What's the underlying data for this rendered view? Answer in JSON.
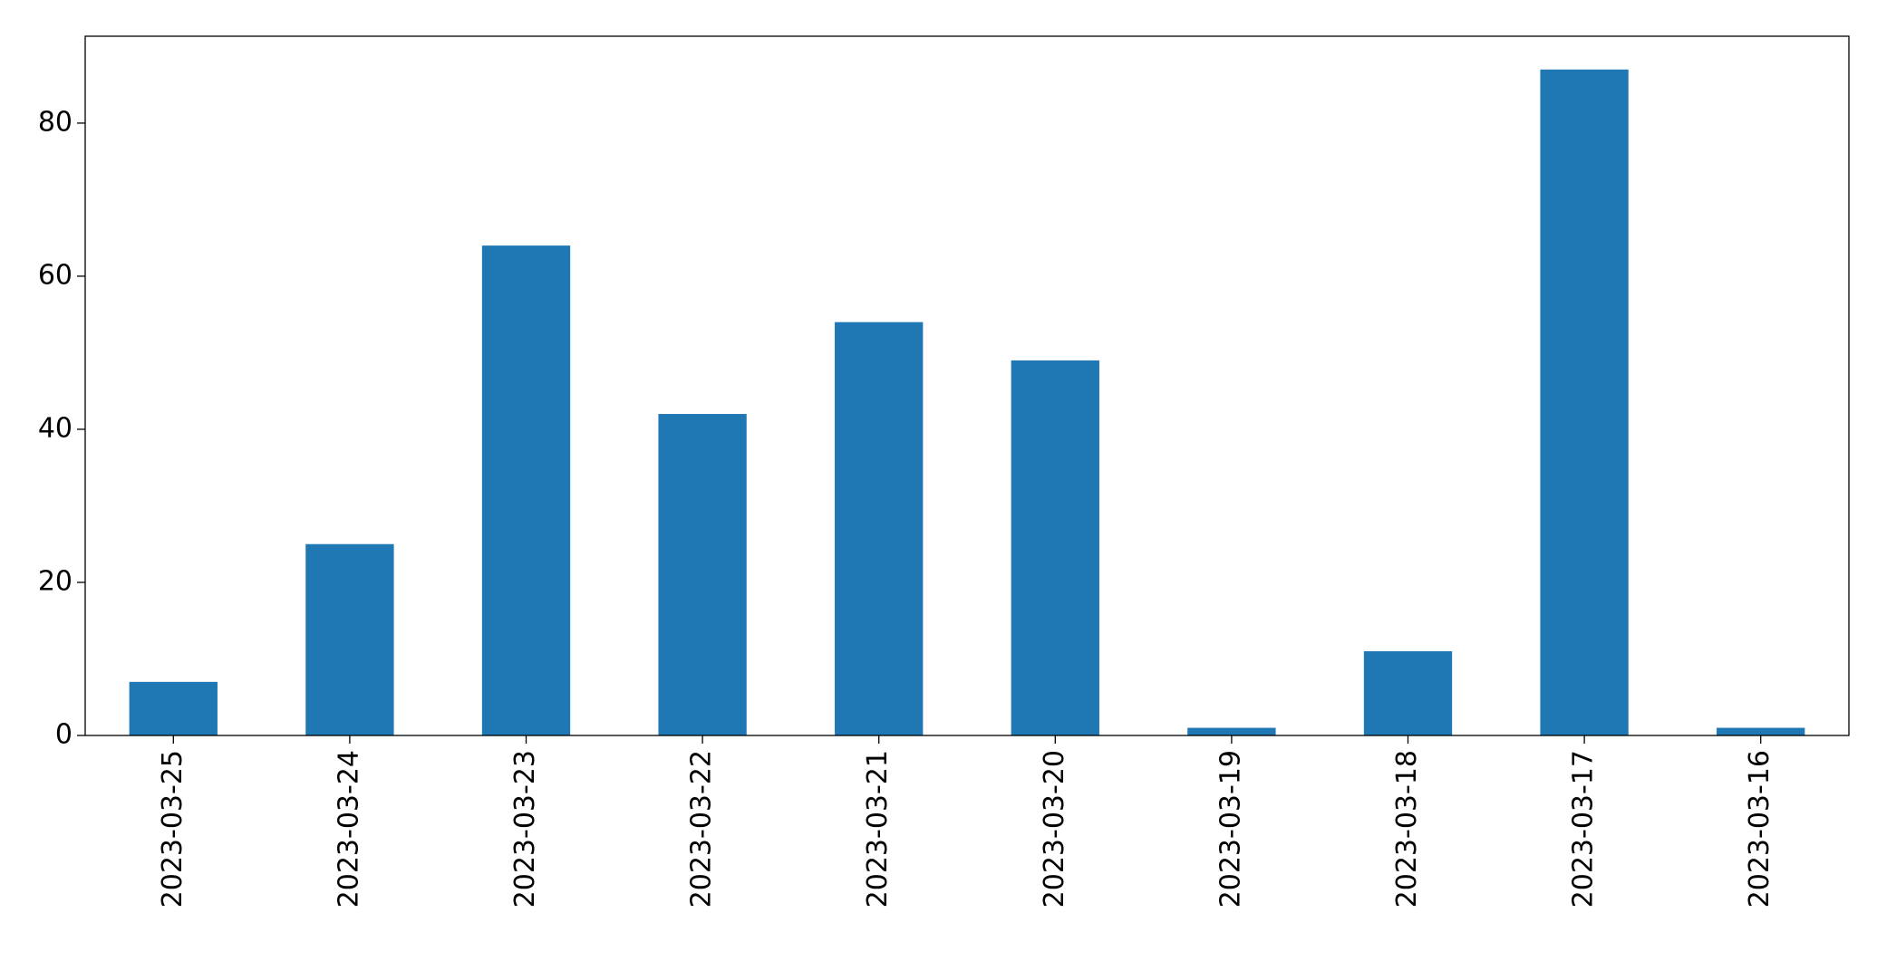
{
  "chart_data": {
    "type": "bar",
    "categories": [
      "2023-03-25",
      "2023-03-24",
      "2023-03-23",
      "2023-03-22",
      "2023-03-21",
      "2023-03-20",
      "2023-03-19",
      "2023-03-18",
      "2023-03-17",
      "2023-03-16"
    ],
    "values": [
      7,
      25,
      64,
      42,
      54,
      49,
      1,
      11,
      87,
      1
    ],
    "color": "#1f77b4",
    "ylim": [
      0,
      91.35
    ],
    "yticks": [
      0,
      20,
      40,
      60,
      80
    ],
    "grid": false
  }
}
